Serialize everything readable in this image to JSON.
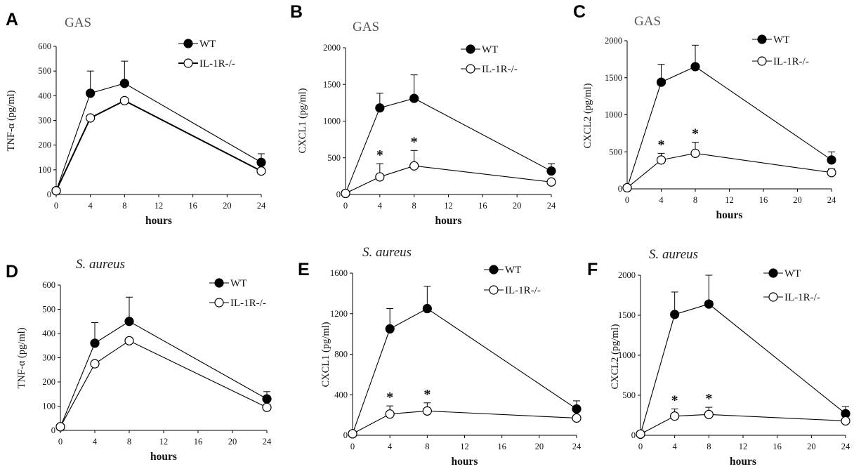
{
  "chart_data": [
    {
      "panel": "A",
      "title": "GAS",
      "type": "line",
      "xlabel": "hours",
      "ylabel": "TNF-α (pg/ml)",
      "xlim": [
        0,
        24
      ],
      "xticks": [
        0,
        4,
        8,
        12,
        16,
        20,
        24
      ],
      "ylim": [
        0,
        600
      ],
      "yticks": [
        0,
        100,
        200,
        300,
        400,
        500,
        600
      ],
      "legend_location": "top-right",
      "series": [
        {
          "name": "WT",
          "marker": "filled-circle",
          "x": [
            0,
            4,
            8,
            24
          ],
          "y": [
            15,
            410,
            450,
            130
          ],
          "error": [
            0,
            90,
            90,
            35
          ]
        },
        {
          "name": "IL-1R-/-",
          "marker": "open-circle",
          "x": [
            0,
            4,
            8,
            24
          ],
          "y": [
            15,
            310,
            380,
            95
          ],
          "error": [
            0,
            0,
            0,
            0
          ]
        }
      ],
      "annotations": []
    },
    {
      "panel": "B",
      "title": "GAS",
      "type": "line",
      "xlabel": "hours",
      "ylabel": "CXCL1 (pg/ml)",
      "xlim": [
        0,
        24
      ],
      "xticks": [
        0,
        4,
        8,
        12,
        16,
        20,
        24
      ],
      "ylim": [
        0,
        2000
      ],
      "yticks": [
        0,
        500,
        1000,
        1500,
        2000
      ],
      "legend_location": "top-right",
      "series": [
        {
          "name": "WT",
          "marker": "filled-circle",
          "x": [
            0,
            4,
            8,
            24
          ],
          "y": [
            15,
            1180,
            1310,
            320
          ],
          "error": [
            0,
            200,
            320,
            100
          ]
        },
        {
          "name": "IL-1R-/-",
          "marker": "open-circle",
          "x": [
            0,
            4,
            8,
            24
          ],
          "y": [
            15,
            240,
            390,
            170
          ],
          "error": [
            0,
            180,
            210,
            40
          ]
        }
      ],
      "annotations": [
        {
          "text": "*",
          "x": 4
        },
        {
          "text": "*",
          "x": 8
        }
      ]
    },
    {
      "panel": "C",
      "title": "GAS",
      "type": "line",
      "xlabel": "hours",
      "ylabel": "CXCL2 (pg/ml)",
      "xlim": [
        0,
        24
      ],
      "xticks": [
        0,
        4,
        8,
        12,
        16,
        20,
        24
      ],
      "ylim": [
        0,
        2000
      ],
      "yticks": [
        0,
        500,
        1000,
        1500,
        2000
      ],
      "legend_location": "top-right",
      "series": [
        {
          "name": "WT",
          "marker": "filled-circle",
          "x": [
            0,
            4,
            8,
            24
          ],
          "y": [
            15,
            1440,
            1650,
            390
          ],
          "error": [
            0,
            240,
            290,
            110
          ]
        },
        {
          "name": "IL-1R-/-",
          "marker": "open-circle",
          "x": [
            0,
            4,
            8,
            24
          ],
          "y": [
            15,
            390,
            480,
            220
          ],
          "error": [
            0,
            90,
            150,
            50
          ]
        }
      ],
      "annotations": [
        {
          "text": "*",
          "x": 4
        },
        {
          "text": "*",
          "x": 8
        }
      ]
    },
    {
      "panel": "D",
      "title": "S. aureus",
      "type": "line",
      "xlabel": "hours",
      "ylabel": "TNF-α (pg/ml)",
      "xlim": [
        0,
        24
      ],
      "xticks": [
        0,
        4,
        8,
        12,
        16,
        20,
        24
      ],
      "ylim": [
        0,
        600
      ],
      "yticks": [
        0,
        100,
        200,
        300,
        400,
        500,
        600
      ],
      "legend_location": "top-right",
      "series": [
        {
          "name": "WT",
          "marker": "filled-circle",
          "x": [
            0,
            4,
            8,
            24
          ],
          "y": [
            15,
            360,
            450,
            130
          ],
          "error": [
            0,
            85,
            100,
            30
          ]
        },
        {
          "name": "IL-1R-/-",
          "marker": "open-circle",
          "x": [
            0,
            4,
            8,
            24
          ],
          "y": [
            15,
            275,
            370,
            95
          ],
          "error": [
            0,
            0,
            0,
            0
          ]
        }
      ],
      "annotations": []
    },
    {
      "panel": "E",
      "title": "S. aureus",
      "type": "line",
      "xlabel": "hours",
      "ylabel": "CXCL1 (pg/ml)",
      "xlim": [
        0,
        24
      ],
      "xticks": [
        0,
        4,
        8,
        12,
        16,
        20,
        24
      ],
      "ylim": [
        0,
        1600
      ],
      "yticks": [
        0,
        400,
        800,
        1200,
        1600
      ],
      "legend_location": "top-right",
      "series": [
        {
          "name": "WT",
          "marker": "filled-circle",
          "x": [
            0,
            4,
            8,
            24
          ],
          "y": [
            15,
            1050,
            1250,
            260
          ],
          "error": [
            0,
            200,
            220,
            80
          ]
        },
        {
          "name": "IL-1R-/-",
          "marker": "open-circle",
          "x": [
            0,
            4,
            8,
            24
          ],
          "y": [
            15,
            210,
            240,
            170
          ],
          "error": [
            0,
            80,
            80,
            0
          ]
        }
      ],
      "annotations": [
        {
          "text": "*",
          "x": 4
        },
        {
          "text": "*",
          "x": 8
        }
      ]
    },
    {
      "panel": "F",
      "title": "S. aureus",
      "type": "line",
      "xlabel": "hours",
      "ylabel": "CXCL2 (pg/ml)",
      "xlim": [
        0,
        24
      ],
      "xticks": [
        0,
        4,
        8,
        12,
        16,
        20,
        24
      ],
      "ylim": [
        0,
        2000
      ],
      "yticks": [
        0,
        500,
        1000,
        1500,
        2000
      ],
      "legend_location": "top-right",
      "series": [
        {
          "name": "WT",
          "marker": "filled-circle",
          "x": [
            0,
            4,
            8,
            24
          ],
          "y": [
            15,
            1510,
            1640,
            270
          ],
          "error": [
            0,
            280,
            360,
            90
          ]
        },
        {
          "name": "IL-1R-/-",
          "marker": "open-circle",
          "x": [
            0,
            4,
            8,
            24
          ],
          "y": [
            15,
            240,
            260,
            180
          ],
          "error": [
            0,
            90,
            90,
            0
          ]
        }
      ],
      "annotations": [
        {
          "text": "*",
          "x": 4
        },
        {
          "text": "*",
          "x": 8
        }
      ]
    }
  ]
}
